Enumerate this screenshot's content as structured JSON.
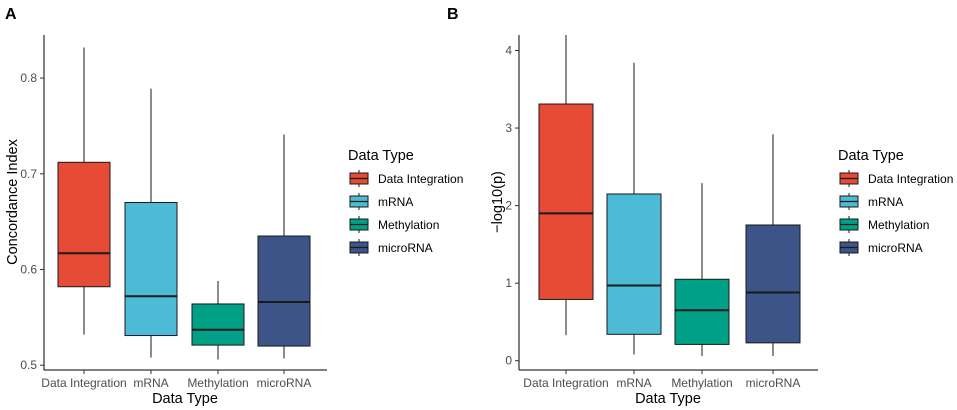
{
  "chart_data": [
    {
      "type": "boxplot",
      "panel": "A",
      "xlabel": "Data Type",
      "ylabel": "Concordance Index",
      "ylim": [
        0.495,
        0.845
      ],
      "yticks": [
        0.5,
        0.6,
        0.7,
        0.8
      ],
      "ytick_labels": [
        "0.5",
        "0.6",
        "0.7",
        "0.8"
      ],
      "categories": [
        "Data Integration",
        "mRNA",
        "Methylation",
        "microRNA"
      ],
      "boxes": [
        {
          "category": "Data Integration",
          "min": 0.532,
          "q1": 0.582,
          "median": 0.617,
          "q3": 0.712,
          "max": 0.832
        },
        {
          "category": "mRNA",
          "min": 0.508,
          "q1": 0.531,
          "median": 0.572,
          "q3": 0.67,
          "max": 0.789
        },
        {
          "category": "Methylation",
          "min": 0.506,
          "q1": 0.521,
          "median": 0.537,
          "q3": 0.564,
          "max": 0.588
        },
        {
          "category": "microRNA",
          "min": 0.507,
          "q1": 0.52,
          "median": 0.566,
          "q3": 0.635,
          "max": 0.741
        }
      ],
      "legend": {
        "title": "Data Type",
        "entries": [
          "Data Integration",
          "mRNA",
          "Methylation",
          "microRNA"
        ],
        "position": "right"
      }
    },
    {
      "type": "boxplot",
      "panel": "B",
      "xlabel": "Data Type",
      "ylabel": "−log10(p)",
      "ylim": [
        -0.12,
        4.2
      ],
      "yticks": [
        0,
        1,
        2,
        3,
        4
      ],
      "ytick_labels": [
        "0",
        "1",
        "2",
        "3",
        "4"
      ],
      "categories": [
        "Data Integration",
        "mRNA",
        "Methylation",
        "microRNA"
      ],
      "boxes": [
        {
          "category": "Data Integration",
          "min": 0.33,
          "q1": 0.79,
          "median": 1.9,
          "q3": 3.31,
          "max": 4.2
        },
        {
          "category": "mRNA",
          "min": 0.08,
          "q1": 0.34,
          "median": 0.97,
          "q3": 2.15,
          "max": 3.84
        },
        {
          "category": "Methylation",
          "min": 0.06,
          "q1": 0.21,
          "median": 0.65,
          "q3": 1.05,
          "max": 2.29
        },
        {
          "category": "microRNA",
          "min": 0.06,
          "q1": 0.23,
          "median": 0.88,
          "q3": 1.75,
          "max": 2.92
        }
      ],
      "legend": {
        "title": "Data Type",
        "entries": [
          "Data Integration",
          "mRNA",
          "Methylation",
          "microRNA"
        ],
        "position": "right"
      }
    }
  ],
  "colors": {
    "Data Integration": "#E64B35",
    "mRNA": "#4DBBD5",
    "Methylation": "#00A087",
    "microRNA": "#3C5488",
    "box_stroke": "#1a1a1a",
    "axis": "#000000",
    "tick_label": "#4d4d4d"
  }
}
